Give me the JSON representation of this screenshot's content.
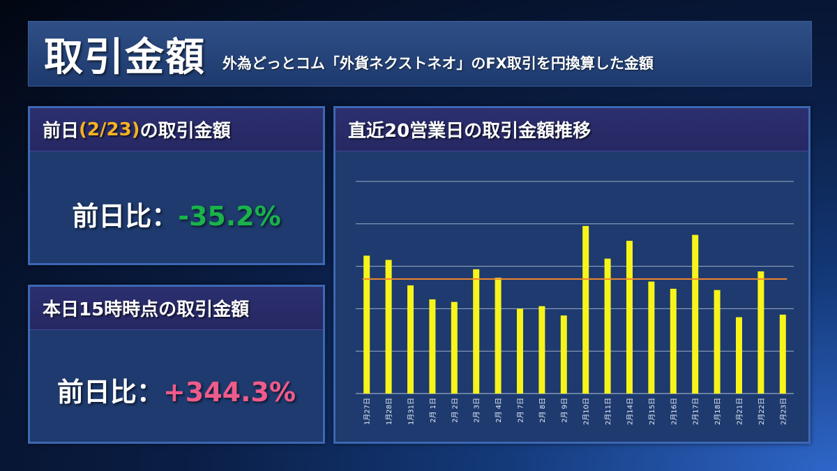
{
  "header": {
    "title": "取引金額",
    "subtitle": "外為どっとコム「外貨ネクストネオ」のFX取引を円換算した金額"
  },
  "prev_day_panel": {
    "title_prefix": "前日",
    "title_date": "(2/23)",
    "title_suffix": "の取引金額",
    "ratio_label": "前日比：",
    "ratio_value": "-35.2%"
  },
  "today_panel": {
    "title": "本日15時時点の取引金額",
    "ratio_label": "前日比：",
    "ratio_value": "+344.3%"
  },
  "chart_panel": {
    "title": "直近20営業日の取引金額推移"
  },
  "colors": {
    "bar": "#f7f41a",
    "average_line": "#f08a2e",
    "negative": "#19b34a",
    "positive": "#ef5b8b",
    "date_highlight": "#f4b223"
  },
  "chart_data": {
    "type": "bar",
    "categories": [
      "1月27日",
      "1月28日",
      "1月31日",
      "2月 1日",
      "2月 2日",
      "2月 3日",
      "2月 4日",
      "2月 7日",
      "2月 8日",
      "2月 9日",
      "2月10日",
      "2月11日",
      "2月14日",
      "2月15日",
      "2月16日",
      "2月17日",
      "2月18日",
      "2月21日",
      "2月22日",
      "2月23日"
    ],
    "values": [
      3.25,
      3.15,
      2.55,
      2.22,
      2.16,
      2.93,
      2.73,
      2.0,
      2.06,
      1.84,
      3.95,
      3.18,
      3.6,
      2.64,
      2.47,
      3.74,
      2.44,
      1.8,
      2.88,
      1.86
    ],
    "average": 2.7,
    "ylim": [
      0,
      5
    ],
    "gridlines": 5,
    "grid": true
  }
}
